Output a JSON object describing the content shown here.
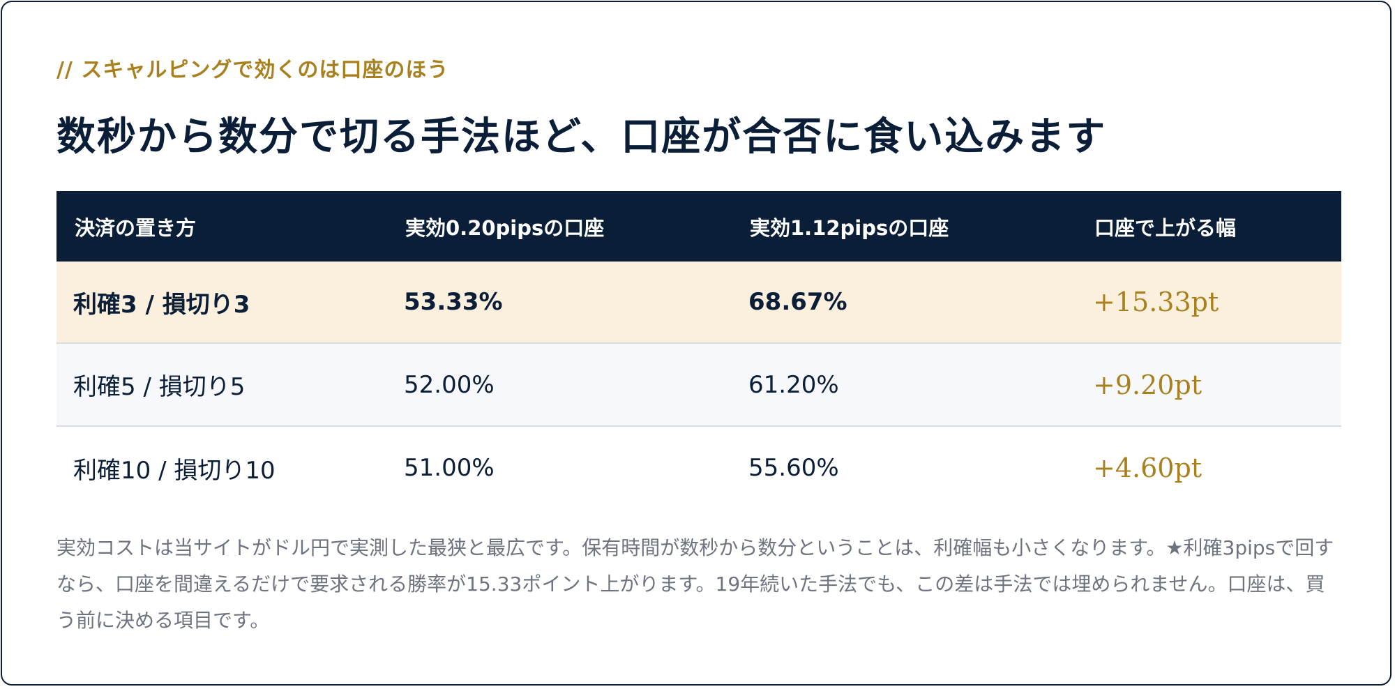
{
  "eyebrow": "// スキャルピングで効くのは口座のほう",
  "title": "数秒から数分で切る手法ほど、口座が合否に食い込みます",
  "table": {
    "headers": [
      "決済の置き方",
      "実効0.20pipsの口座",
      "実効1.12pipsの口座",
      "口座で上がる幅"
    ],
    "rows": [
      [
        "利確3 / 損切り3",
        "53.33%",
        "68.67%",
        "+15.33pt"
      ],
      [
        "利確5 / 損切り5",
        "52.00%",
        "61.20%",
        "+9.20pt"
      ],
      [
        "利確10 / 損切り10",
        "51.00%",
        "55.60%",
        "+4.60pt"
      ]
    ]
  },
  "note": "実効コストは当サイトがドル円で実測した最狭と最広です。保有時間が数秒から数分ということは、利確幅も小さくなります。★利確3pipsで回すなら、口座を間違えるだけで要求される勝率が15.33ポイント上がります。19年続いた手法でも、この差は手法では埋められません。口座は、買う前に決める項目です。",
  "colors": {
    "navy": "#0b1e38",
    "gold": "#a8811e",
    "highlight_row": "#fbf0dd",
    "alt_row": "#f6f8fb"
  }
}
